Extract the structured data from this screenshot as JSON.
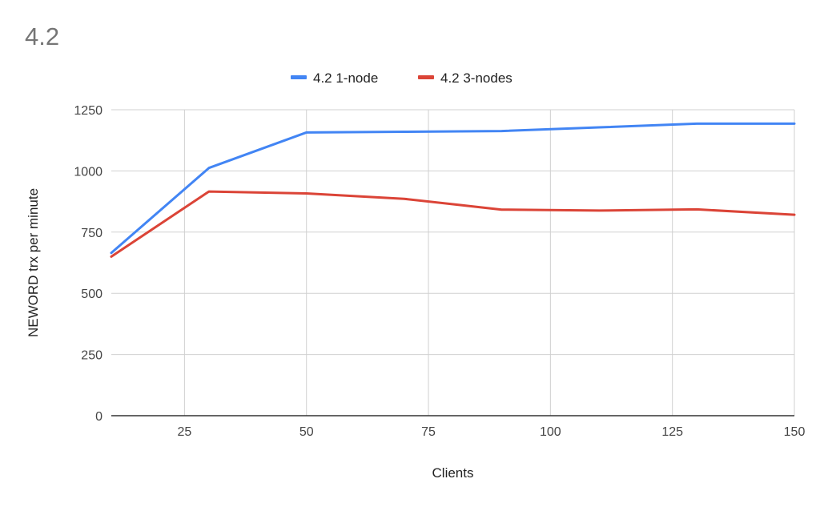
{
  "chart_data": {
    "type": "line",
    "title": "4.2",
    "xlabel": "Clients",
    "ylabel": "NEWORD trx per minute",
    "xlim": [
      10,
      150
    ],
    "ylim": [
      0,
      1250
    ],
    "x_ticks": [
      25,
      50,
      75,
      100,
      125,
      150
    ],
    "y_ticks": [
      0,
      250,
      500,
      750,
      1000,
      1250
    ],
    "grid": true,
    "legend_position": "top",
    "series": [
      {
        "name": "4.2 1-node",
        "color": "#4285f4",
        "x": [
          10,
          30,
          50,
          70,
          90,
          110,
          130,
          150
        ],
        "y": [
          665,
          1012,
          1157,
          1160,
          1163,
          1178,
          1193,
          1193
        ]
      },
      {
        "name": "4.2 3-nodes",
        "color": "#db4437",
        "x": [
          10,
          30,
          50,
          70,
          90,
          110,
          130,
          150
        ],
        "y": [
          650,
          916,
          908,
          886,
          842,
          838,
          843,
          821
        ]
      }
    ]
  }
}
